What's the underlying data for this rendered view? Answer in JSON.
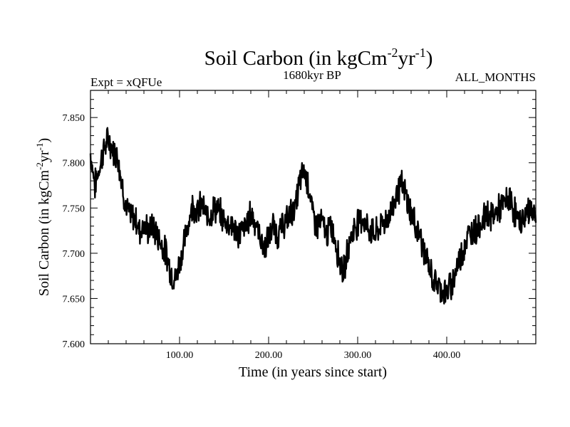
{
  "chart_data": {
    "type": "line",
    "title": "Soil Carbon (in kgCm",
    "title_sup1": "-2",
    "title_mid": "yr",
    "title_sup2": "-1",
    "title_end": ")",
    "subtitle_left": "Expt = xQFUe",
    "subtitle_center": "1680kyr BP",
    "subtitle_right": "ALL_MONTHS",
    "xlabel": "Time (in years since start)",
    "ylabel_pre": "Soil Carbon (in kgCm",
    "ylabel_sup1": "-2",
    "ylabel_mid": "yr",
    "ylabel_sup2": "-1",
    "ylabel_end": ")",
    "xlim": [
      0,
      500
    ],
    "ylim": [
      7.6,
      7.88
    ],
    "x_ticks": [
      {
        "value": 100,
        "label": "100.00"
      },
      {
        "value": 200,
        "label": "200.00"
      },
      {
        "value": 300,
        "label": "300.00"
      },
      {
        "value": 400,
        "label": "400.00"
      }
    ],
    "y_ticks": [
      {
        "value": 7.6,
        "label": "7.600"
      },
      {
        "value": 7.65,
        "label": "7.650"
      },
      {
        "value": 7.7,
        "label": "7.700"
      },
      {
        "value": 7.75,
        "label": "7.750"
      },
      {
        "value": 7.8,
        "label": "7.800"
      },
      {
        "value": 7.85,
        "label": "7.850"
      }
    ],
    "grid": false,
    "series": [
      {
        "color": "#000000",
        "x": [
          0,
          5,
          10,
          15,
          20,
          25,
          30,
          35,
          40,
          45,
          50,
          55,
          60,
          65,
          70,
          75,
          80,
          85,
          90,
          95,
          100,
          105,
          110,
          115,
          120,
          125,
          130,
          135,
          140,
          145,
          150,
          155,
          160,
          165,
          170,
          175,
          180,
          185,
          190,
          195,
          200,
          205,
          210,
          215,
          220,
          225,
          230,
          235,
          240,
          245,
          250,
          255,
          260,
          265,
          270,
          275,
          280,
          285,
          290,
          295,
          300,
          305,
          310,
          315,
          320,
          325,
          330,
          335,
          340,
          345,
          350,
          355,
          360,
          365,
          370,
          375,
          380,
          385,
          390,
          395,
          400,
          405,
          410,
          415,
          420,
          425,
          430,
          435,
          440,
          445,
          450,
          455,
          460,
          465,
          470,
          475,
          480,
          485,
          490,
          495,
          500
        ],
        "values": [
          7.81,
          7.775,
          7.795,
          7.815,
          7.825,
          7.815,
          7.81,
          7.78,
          7.75,
          7.74,
          7.74,
          7.725,
          7.73,
          7.725,
          7.73,
          7.72,
          7.71,
          7.7,
          7.68,
          7.67,
          7.69,
          7.71,
          7.735,
          7.755,
          7.745,
          7.755,
          7.74,
          7.745,
          7.75,
          7.745,
          7.735,
          7.735,
          7.73,
          7.72,
          7.725,
          7.73,
          7.745,
          7.735,
          7.72,
          7.705,
          7.715,
          7.73,
          7.72,
          7.73,
          7.735,
          7.745,
          7.75,
          7.78,
          7.79,
          7.775,
          7.74,
          7.73,
          7.735,
          7.72,
          7.73,
          7.715,
          7.69,
          7.68,
          7.71,
          7.725,
          7.735,
          7.74,
          7.73,
          7.725,
          7.72,
          7.73,
          7.735,
          7.74,
          7.755,
          7.77,
          7.775,
          7.76,
          7.745,
          7.73,
          7.72,
          7.7,
          7.685,
          7.67,
          7.665,
          7.66,
          7.655,
          7.665,
          7.68,
          7.695,
          7.71,
          7.72,
          7.725,
          7.73,
          7.735,
          7.745,
          7.74,
          7.745,
          7.75,
          7.755,
          7.76,
          7.75,
          7.735,
          7.735,
          7.745,
          7.75,
          7.74
        ]
      }
    ]
  }
}
